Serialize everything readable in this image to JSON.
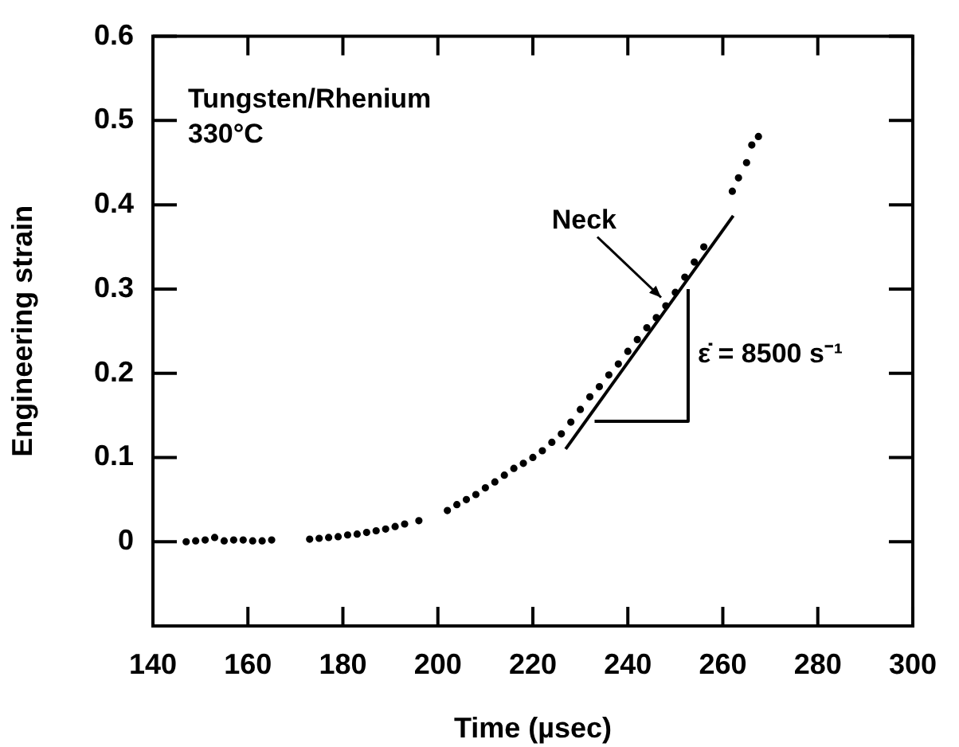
{
  "chart_data": {
    "type": "scatter",
    "xlabel": "Time (µsec)",
    "ylabel": "Engineering strain",
    "annotations": [
      "Tungsten/Rhenium",
      "330°C",
      {
        "text": "Neck",
        "x": 247,
        "y": 0.29
      }
    ],
    "xlim": [
      140,
      300
    ],
    "xticks": [
      140,
      160,
      180,
      200,
      220,
      240,
      260,
      280,
      300
    ],
    "ylim": [
      -0.1,
      0.6
    ],
    "yticks": [
      0,
      0.1,
      0.2,
      0.3,
      0.4,
      0.5,
      0.6
    ],
    "grid": false,
    "legend": false,
    "series": [
      {
        "marker": "circle",
        "color": "#000000",
        "x": [
          147,
          149,
          151,
          153,
          155,
          157,
          159,
          161,
          163,
          165,
          173,
          175,
          177,
          179,
          181,
          183,
          185,
          187,
          189,
          191,
          193,
          196,
          202,
          204,
          206,
          208,
          210,
          212,
          214,
          216,
          218,
          220,
          222,
          224,
          226,
          228,
          230,
          232,
          234,
          236,
          238,
          240,
          242,
          244,
          246,
          248,
          250,
          252,
          254,
          256,
          262,
          263.3,
          265,
          266.1,
          267.5
        ],
        "values": [
          0,
          0.001,
          0.002,
          0.005,
          0.001,
          0.002,
          0.002,
          0.001,
          0.001,
          0.002,
          0.003,
          0.004,
          0.005,
          0.006,
          0.008,
          0.009,
          0.011,
          0.013,
          0.015,
          0.018,
          0.021,
          0.025,
          0.037,
          0.044,
          0.05,
          0.056,
          0.064,
          0.071,
          0.079,
          0.087,
          0.093,
          0.1,
          0.108,
          0.118,
          0.128,
          0.142,
          0.157,
          0.172,
          0.184,
          0.198,
          0.211,
          0.226,
          0.24,
          0.254,
          0.266,
          0.28,
          0.296,
          0.314,
          0.332,
          0.35,
          0.416,
          0.432,
          0.45,
          0.471,
          0.481
        ]
      },
      {
        "type": "line",
        "marker": "none",
        "color": "#000000",
        "x": [
          226.9,
          262.2
        ],
        "values": [
          0.11,
          0.387
        ]
      },
      {
        "type": "line",
        "marker": "none",
        "name": "ε̇ = 8500 s⁻¹",
        "color": "#000000",
        "x": [
          233,
          252.7,
          252.7
        ],
        "values": [
          0.143,
          0.143,
          0.3
        ]
      }
    ]
  }
}
